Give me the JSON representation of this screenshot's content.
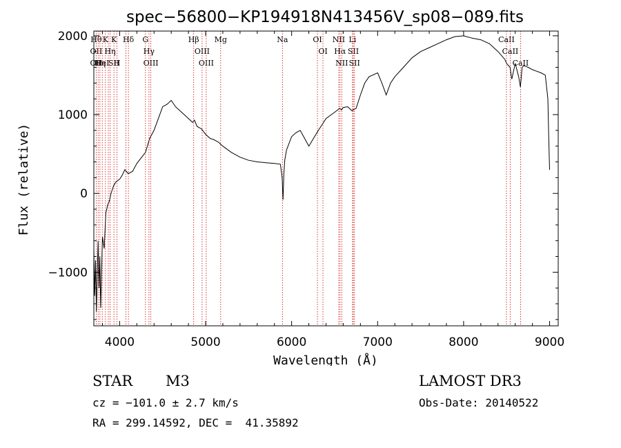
{
  "chart_data": {
    "type": "line",
    "title": "spec−56800−KP194918N413456V_sp08−089.fits",
    "xlabel": "Wavelength (Å)",
    "ylabel": "Flux (relative)",
    "xlim": [
      3700,
      9100
    ],
    "ylim": [
      -1680,
      2060
    ],
    "xticks": [
      {
        "v": 4000,
        "label": "4000"
      },
      {
        "v": 5000,
        "label": "5000"
      },
      {
        "v": 6000,
        "label": "6000"
      },
      {
        "v": 7000,
        "label": "7000"
      },
      {
        "v": 8000,
        "label": "8000"
      },
      {
        "v": 9000,
        "label": "9000"
      }
    ],
    "yticks": [
      {
        "v": 2000,
        "label": "2000"
      },
      {
        "v": 1000,
        "label": "1000"
      },
      {
        "v": 0,
        "label": "0"
      },
      {
        "v": -1000,
        "label": "−1000"
      }
    ],
    "series": [
      {
        "x": [
          3700,
          3710,
          3720,
          3730,
          3740,
          3750,
          3760,
          3770,
          3780,
          3790,
          3800,
          3820,
          3840,
          3860,
          3880,
          3900,
          3930,
          3960,
          4000,
          4030,
          4060,
          4100,
          4150,
          4200,
          4250,
          4300,
          4350,
          4400,
          4450,
          4500,
          4550,
          4600,
          4650,
          4700,
          4750,
          4800,
          4850,
          4870,
          4900,
          4950,
          5000,
          5050,
          5100,
          5150,
          5200,
          5300,
          5400,
          5500,
          5600,
          5700,
          5800,
          5870,
          5890,
          5900,
          5910,
          5920,
          5940,
          6000,
          6050,
          6100,
          6150,
          6200,
          6300,
          6400,
          6500,
          6560,
          6580,
          6600,
          6650,
          6700,
          6750,
          6800,
          6850,
          6900,
          7000,
          7050,
          7100,
          7150,
          7200,
          7300,
          7400,
          7500,
          7600,
          7700,
          7800,
          7900,
          8000,
          8100,
          8200,
          8300,
          8400,
          8480,
          8500,
          8540,
          8560,
          8600,
          8640,
          8660,
          8680,
          8700,
          8750,
          8800,
          8850,
          8900,
          8950,
          8980,
          8990,
          9000
        ],
        "y": [
          -700,
          -1300,
          -850,
          -1500,
          -1000,
          -600,
          -1200,
          -800,
          -1450,
          -1000,
          -550,
          -700,
          -250,
          -150,
          -100,
          0,
          100,
          150,
          180,
          230,
          300,
          250,
          280,
          380,
          450,
          520,
          700,
          800,
          950,
          1100,
          1130,
          1180,
          1100,
          1050,
          1000,
          950,
          900,
          930,
          850,
          820,
          750,
          700,
          680,
          650,
          600,
          520,
          460,
          420,
          400,
          390,
          380,
          370,
          200,
          -80,
          250,
          420,
          550,
          720,
          770,
          800,
          700,
          600,
          780,
          950,
          1030,
          1080,
          1060,
          1090,
          1100,
          1050,
          1080,
          1250,
          1400,
          1480,
          1530,
          1400,
          1250,
          1400,
          1480,
          1600,
          1720,
          1800,
          1850,
          1900,
          1950,
          1990,
          2000,
          1970,
          1950,
          1900,
          1800,
          1700,
          1650,
          1600,
          1450,
          1650,
          1480,
          1350,
          1600,
          1620,
          1600,
          1570,
          1550,
          1530,
          1500,
          1200,
          700,
          300
        ]
      }
    ],
    "line_annotations": [
      {
        "x": 3727,
        "labels": [
          "Hθ",
          "OII",
          "OII"
        ]
      },
      {
        "x": 3750,
        "labels": []
      },
      {
        "x": 3771,
        "labels": [
          "Hη"
        ]
      },
      {
        "x": 3798,
        "labels": [
          "HeI"
        ]
      },
      {
        "x": 3835,
        "labels": [
          "K"
        ]
      },
      {
        "x": 3868,
        "labels": []
      },
      {
        "x": 3889,
        "labels": [
          "Hη"
        ]
      },
      {
        "x": 3934,
        "labels": [
          "K",
          "SII"
        ]
      },
      {
        "x": 3969,
        "labels": [
          "H"
        ]
      },
      {
        "x": 4072,
        "labels": []
      },
      {
        "x": 4102,
        "labels": [
          "Hδ"
        ]
      },
      {
        "x": 4300,
        "labels": [
          "G"
        ]
      },
      {
        "x": 4341,
        "labels": [
          "Hγ"
        ]
      },
      {
        "x": 4363,
        "labels": [
          "OIII"
        ]
      },
      {
        "x": 4861,
        "labels": [
          "Hβ"
        ]
      },
      {
        "x": 4959,
        "labels": [
          "OIII"
        ]
      },
      {
        "x": 5007,
        "labels": [
          "OIII"
        ]
      },
      {
        "x": 5175,
        "labels": [
          "Mg"
        ]
      },
      {
        "x": 5893,
        "labels": [
          "Na"
        ]
      },
      {
        "x": 6300,
        "labels": [
          "OI"
        ]
      },
      {
        "x": 6364,
        "labels": [
          "OI"
        ]
      },
      {
        "x": 6548,
        "labels": [
          "NII"
        ]
      },
      {
        "x": 6563,
        "labels": [
          "Hα"
        ]
      },
      {
        "x": 6583,
        "labels": [
          "NII"
        ]
      },
      {
        "x": 6708,
        "labels": [
          "Li"
        ]
      },
      {
        "x": 6717,
        "labels": [
          "SII"
        ]
      },
      {
        "x": 6731,
        "labels": [
          "SII"
        ]
      },
      {
        "x": 8498,
        "labels": [
          "CaII"
        ]
      },
      {
        "x": 8542,
        "labels": [
          "CaII"
        ]
      },
      {
        "x": 8662,
        "labels": [
          "CaII"
        ]
      }
    ],
    "grid": false,
    "line_color": "#000000",
    "marker_color": "#cc0000"
  },
  "info": {
    "object_class": "STAR",
    "subclass": "M3",
    "survey": "LAMOST DR3",
    "cz": "cz = −101.0 ± 2.7 km/s",
    "obs_date": "Obs-Date: 20140522",
    "coords": "RA = 299.14592, DEC =  41.35892"
  }
}
